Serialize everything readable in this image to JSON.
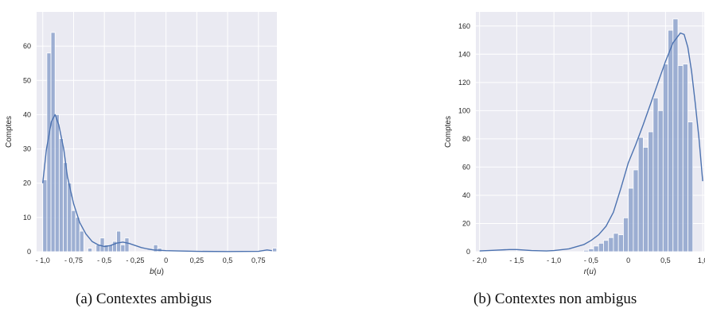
{
  "chart_data": [
    {
      "type": "histogram",
      "caption": "(a) Contextes ambigus",
      "xlabel": "b(u)",
      "ylabel": "Comptes",
      "xlim": [
        -1.05,
        0.9
      ],
      "ylim": [
        0,
        70
      ],
      "xticks": [
        -1.0,
        -0.75,
        -0.5,
        -0.25,
        0,
        0.25,
        0.5,
        0.75
      ],
      "xtick_labels": [
        "- 1,0",
        "- 0,75",
        "- 0,5",
        "- 0,25",
        "0",
        "0,25",
        "0,5",
        "0,75"
      ],
      "yticks": [
        0,
        10,
        20,
        30,
        40,
        50,
        60
      ],
      "ytick_labels": [
        "0",
        "10",
        "20",
        "30",
        "40",
        "50",
        "60"
      ],
      "grid": true,
      "bar_color": "#8ea3cc",
      "line_color": "#4c72b0",
      "bins_start": -1.0,
      "bin_width": 0.0333,
      "counts": [
        21,
        58,
        64,
        40,
        33,
        26,
        20,
        12,
        10,
        6,
        0,
        1,
        0,
        2,
        4,
        2,
        2,
        3,
        6,
        2,
        4,
        0,
        0,
        0,
        0,
        0,
        0,
        2,
        1,
        0,
        0,
        0,
        0,
        0,
        0,
        0,
        0,
        0,
        0,
        0,
        0,
        0,
        0,
        0,
        0,
        0,
        0,
        0,
        0,
        0,
        0,
        0,
        0,
        0,
        0,
        0,
        1
      ],
      "kde_x": [
        -1.0,
        -0.97,
        -0.93,
        -0.9,
        -0.87,
        -0.83,
        -0.8,
        -0.75,
        -0.7,
        -0.65,
        -0.6,
        -0.55,
        -0.5,
        -0.45,
        -0.4,
        -0.35,
        -0.3,
        -0.25,
        -0.2,
        -0.15,
        -0.1,
        0.0,
        0.1,
        0.25,
        0.5,
        0.75,
        0.82,
        0.86
      ],
      "kde_y": [
        20,
        30,
        38,
        40,
        37,
        30,
        22,
        14,
        8.5,
        5.2,
        3.0,
        2.0,
        1.5,
        1.8,
        2.5,
        2.8,
        2.4,
        1.8,
        1.2,
        0.8,
        0.5,
        0.3,
        0.2,
        0.1,
        0.05,
        0.1,
        0.5,
        0.3
      ]
    },
    {
      "type": "histogram",
      "caption": "(b) Contextes non ambigus",
      "xlabel": "r(u)",
      "ylabel": "Comptes",
      "xlim": [
        -2.05,
        1.02
      ],
      "ylim": [
        0,
        170
      ],
      "xticks": [
        -2.0,
        -1.5,
        -1.0,
        -0.5,
        0,
        0.5,
        1.0
      ],
      "xtick_labels": [
        "- 2,0",
        "- 1,5",
        "- 1,0",
        "- 0,5",
        "0",
        "0,5",
        "1,0"
      ],
      "yticks": [
        0,
        20,
        40,
        60,
        80,
        100,
        120,
        140,
        160
      ],
      "ytick_labels": [
        "0",
        "20",
        "40",
        "60",
        "80",
        "100",
        "120",
        "140",
        "160"
      ],
      "grid": true,
      "bar_color": "#8ea3cc",
      "line_color": "#4c72b0",
      "bins_start": -0.6,
      "bin_width": 0.0667,
      "counts": [
        1,
        2,
        4,
        6,
        8,
        10,
        13,
        12,
        24,
        45,
        58,
        81,
        74,
        85,
        109,
        100,
        133,
        157,
        165,
        132,
        133,
        92
      ],
      "kde_x": [
        -2.0,
        -1.8,
        -1.6,
        -1.5,
        -1.3,
        -1.1,
        -1.0,
        -0.8,
        -0.6,
        -0.5,
        -0.4,
        -0.3,
        -0.2,
        -0.1,
        0.0,
        0.1,
        0.2,
        0.3,
        0.4,
        0.5,
        0.6,
        0.7,
        0.75,
        0.8,
        0.85,
        0.9,
        0.95,
        1.0
      ],
      "kde_y": [
        0.5,
        1.0,
        1.5,
        1.5,
        0.8,
        0.5,
        0.8,
        2,
        5,
        8,
        12,
        18,
        28,
        45,
        63,
        76,
        90,
        105,
        120,
        135,
        148,
        155,
        154,
        145,
        128,
        105,
        80,
        50
      ]
    }
  ]
}
